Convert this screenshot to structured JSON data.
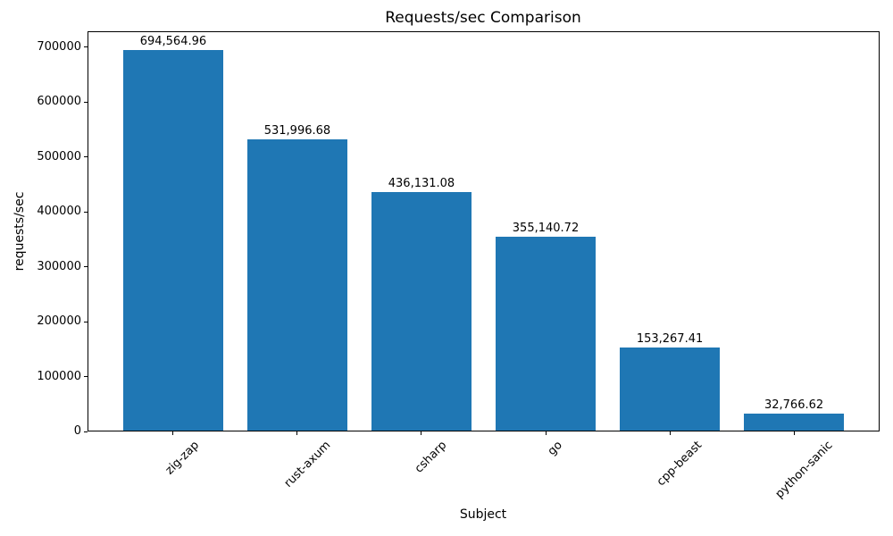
{
  "chart_data": {
    "type": "bar",
    "title": "Requests/sec Comparison",
    "xlabel": "Subject",
    "ylabel": "requests/sec",
    "categories": [
      "zig-zap",
      "rust-axum",
      "csharp",
      "go",
      "cpp-beast",
      "python-sanic"
    ],
    "values": [
      694564.96,
      531996.68,
      436131.08,
      355140.72,
      153267.41,
      32766.62
    ],
    "value_labels": [
      "694,564.96",
      "531,996.68",
      "436,131.08",
      "355,140.72",
      "153,267.41",
      "32,766.62"
    ],
    "bar_color": "#1f77b4",
    "text_color": "#000000",
    "bar_width": 0.8,
    "xlim": [
      -0.69,
      5.69
    ],
    "ylim": [
      0,
      729293
    ],
    "yticks": [
      0,
      100000,
      200000,
      300000,
      400000,
      500000,
      600000,
      700000
    ],
    "ytick_labels": [
      "0",
      "100000",
      "200000",
      "300000",
      "400000",
      "500000",
      "600000",
      "700000"
    ],
    "x_tick_rotation_deg": 45,
    "grid": false,
    "legend": null
  }
}
